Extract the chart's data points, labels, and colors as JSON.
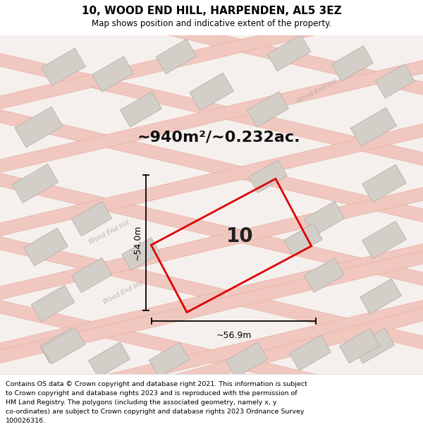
{
  "title": "10, WOOD END HILL, HARPENDEN, AL5 3EZ",
  "subtitle": "Map shows position and indicative extent of the property.",
  "area_text": "~940m²/~0.232ac.",
  "dim_width": "~56.9m",
  "dim_height": "~54.0m",
  "property_label": "10",
  "footer_lines": [
    "Contains OS data © Crown copyright and database right 2021. This information is subject",
    "to Crown copyright and database rights 2023 and is reproduced with the permission of",
    "HM Land Registry. The polygons (including the associated geometry, namely x, y",
    "co-ordinates) are subject to Crown copyright and database rights 2023 Ordnance Survey",
    "100026316."
  ],
  "bg_color": "#f5f0ee",
  "map_bg": "#f5f0ee",
  "road_color": "#f0c8c0",
  "road_edge_color": "#e8a898",
  "building_fill": "#d4cec8",
  "building_edge": "#b8b0a8",
  "property_outline_color": "#dd0000",
  "dim_line_color": "#000000",
  "title_color": "#000000",
  "footer_color": "#000000",
  "area_color": "#111111",
  "road_label_color": "#b0a8a0",
  "white": "#ffffff"
}
